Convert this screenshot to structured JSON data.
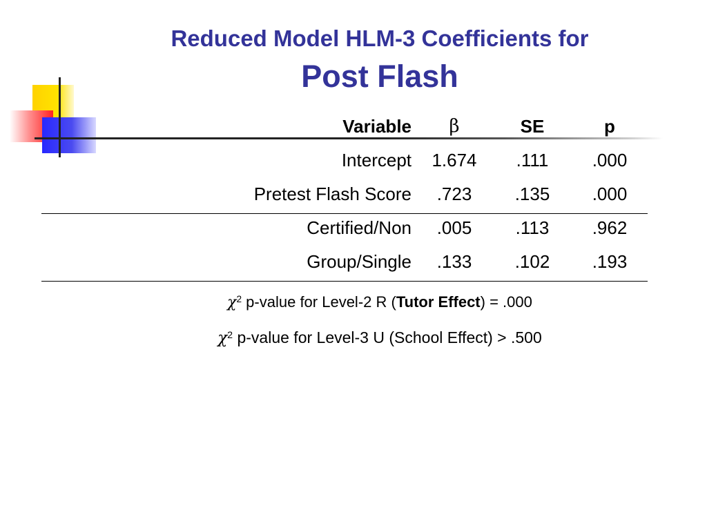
{
  "slide": {
    "title_line1": "Reduced Model HLM-3 Coefficients for",
    "title_line2": "Post Flash"
  },
  "table": {
    "headers": {
      "variable": "Variable",
      "beta": "β",
      "se": "SE",
      "p": "p"
    },
    "rows": [
      {
        "variable": "Intercept",
        "beta": "1.674",
        "se": ".111",
        "p": ".000"
      },
      {
        "variable": "Pretest Flash Score",
        "beta": ".723",
        "se": ".135",
        "p": ".000"
      },
      {
        "variable": "Certified/Non",
        "beta": ".005",
        "se": ".113",
        "p": ".962"
      },
      {
        "variable": "Group/Single",
        "beta": ".133",
        "se": ".102",
        "p": ".193"
      }
    ]
  },
  "notes": {
    "chi_symbol": "χ",
    "superscript": "2",
    "note1_prefix": " p-value for Level-2 R (",
    "note1_bold": "Tutor Effect",
    "note1_suffix": ") = .000",
    "note2_text": " p-value for Level-3 U (School Effect) > .500"
  },
  "colors": {
    "title": "#333399",
    "accent_yellow": "#ffd200",
    "accent_red": "#ff2020",
    "accent_blue": "#2828ff"
  }
}
